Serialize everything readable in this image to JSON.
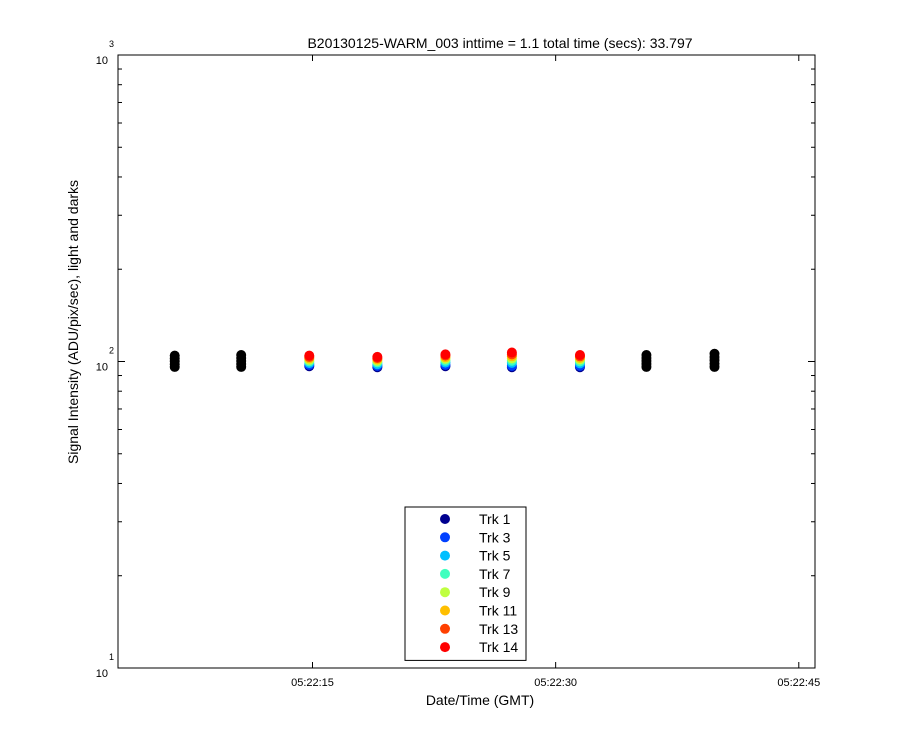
{
  "chart_data": {
    "type": "scatter",
    "title": "B20130125-WARM_003 inttime = 1.1 total time (secs): 33.797",
    "xlabel": "Date/Time (GMT)",
    "ylabel": "Signal Intensity (ADU/pix/sec), light and darks",
    "yscale": "log",
    "ylim": [
      10,
      1000
    ],
    "xlim": [
      "05:22:03",
      "05:22:46"
    ],
    "x_ticks": [
      "05:22:15",
      "05:22:30",
      "05:22:45"
    ],
    "y_ticks": [
      {
        "base": "10",
        "exp": "1",
        "value": 10
      },
      {
        "base": "10",
        "exp": "2",
        "value": 100
      },
      {
        "base": "10",
        "exp": "3",
        "value": 1000
      }
    ],
    "grid": false,
    "legend_position": "bottom-center",
    "series": [
      {
        "name": "Trk 1",
        "color": "#00008f",
        "x": [
          "05:22:14.8",
          "05:22:19.0",
          "05:22:23.2",
          "05:22:27.3",
          "05:22:31.5"
        ],
        "y": [
          96.5,
          95.8,
          96.5,
          95.8,
          95.8
        ]
      },
      {
        "name": "Trk 3",
        "color": "#0040ff",
        "x": [
          "05:22:14.8",
          "05:22:19.0",
          "05:22:23.2",
          "05:22:27.3",
          "05:22:31.5"
        ],
        "y": [
          97.5,
          96.8,
          97.5,
          96.8,
          96.8
        ]
      },
      {
        "name": "Trk 5",
        "color": "#00bfff",
        "x": [
          "05:22:14.8",
          "05:22:19.0",
          "05:22:23.2",
          "05:22:27.3",
          "05:22:31.5"
        ],
        "y": [
          98.8,
          98.0,
          99.2,
          99.0,
          98.6
        ]
      },
      {
        "name": "Trk 7",
        "color": "#40ffbf",
        "x": [
          "05:22:14.8",
          "05:22:19.0",
          "05:22:23.2",
          "05:22:27.3",
          "05:22:31.5"
        ],
        "y": [
          100.0,
          99.3,
          100.6,
          100.6,
          100.0
        ]
      },
      {
        "name": "Trk 9",
        "color": "#bfff40",
        "x": [
          "05:22:14.8",
          "05:22:19.0",
          "05:22:23.2",
          "05:22:27.3",
          "05:22:31.5"
        ],
        "y": [
          101.2,
          100.5,
          102.0,
          102.3,
          101.4
        ]
      },
      {
        "name": "Trk 11",
        "color": "#ffbf00",
        "x": [
          "05:22:14.8",
          "05:22:19.0",
          "05:22:23.2",
          "05:22:27.3",
          "05:22:31.5"
        ],
        "y": [
          102.4,
          101.6,
          103.3,
          104.0,
          102.8
        ]
      },
      {
        "name": "Trk 13",
        "color": "#ff4000",
        "x": [
          "05:22:14.8",
          "05:22:19.0",
          "05:22:23.2",
          "05:22:27.3",
          "05:22:31.5"
        ],
        "y": [
          103.5,
          102.6,
          104.5,
          105.5,
          104.0
        ]
      },
      {
        "name": "Trk 14",
        "color": "#ff0000",
        "x": [
          "05:22:14.8",
          "05:22:19.0",
          "05:22:23.2",
          "05:22:27.3",
          "05:22:31.5"
        ],
        "y": [
          104.5,
          103.5,
          105.5,
          107.0,
          105.0
        ]
      }
    ],
    "dark_frames": {
      "color": "#000000",
      "x": [
        "05:22:06.5",
        "05:22:10.6",
        "05:22:35.6",
        "05:22:39.8"
      ],
      "y_min": [
        96,
        96,
        96,
        96
      ],
      "y_max": [
        104.5,
        105,
        105,
        106
      ]
    }
  }
}
